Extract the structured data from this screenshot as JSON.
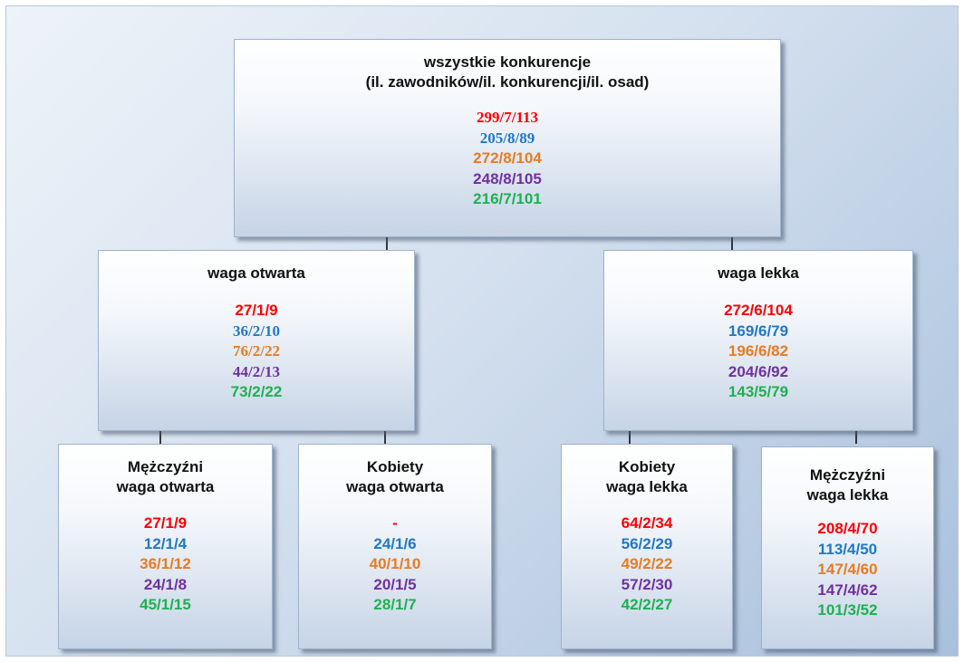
{
  "colors": {
    "red": "#ff0000",
    "blue": "#1f78c8",
    "orange": "#e87b22",
    "purple": "#7030a0",
    "green": "#1fb050",
    "connector": "#000000"
  },
  "nodes": {
    "root": {
      "title": [
        "wszystkie konkurencje",
        "(il. zawodników/il. konkurencji/il. osad)"
      ],
      "values": [
        "299/7/113",
        "205/8/89",
        "272/8/104",
        "248/8/105",
        "216/7/101"
      ]
    },
    "open": {
      "title": [
        "waga otwarta"
      ],
      "values": [
        "27/1/9",
        "36/2/10",
        "76/2/22",
        "44/2/13",
        "73/2/22"
      ]
    },
    "light": {
      "title": [
        "waga lekka"
      ],
      "values": [
        "272/6/104",
        "169/6/79",
        "196/6/82",
        "204/6/92",
        "143/5/79"
      ]
    },
    "men_open": {
      "title": [
        "Mężczyźni",
        "waga otwarta"
      ],
      "values": [
        "27/1/9",
        "12/1/4",
        "36/1/12",
        "24/1/8",
        "45/1/15"
      ]
    },
    "women_open": {
      "title": [
        "Kobiety",
        "waga otwarta"
      ],
      "values": [
        "-",
        "24/1/6",
        "40/1/10",
        "20/1/5",
        "28/1/7"
      ]
    },
    "women_light": {
      "title": [
        "Kobiety",
        "waga lekka"
      ],
      "values": [
        "64/2/34",
        "56/2/29",
        "49/2/22",
        "57/2/30",
        "42/2/27"
      ]
    },
    "men_light": {
      "title": [
        "Mężczyźni",
        "waga lekka"
      ],
      "values": [
        "208/4/70",
        "113/4/50",
        "147/4/60",
        "147/4/62",
        "101/3/52"
      ]
    }
  }
}
